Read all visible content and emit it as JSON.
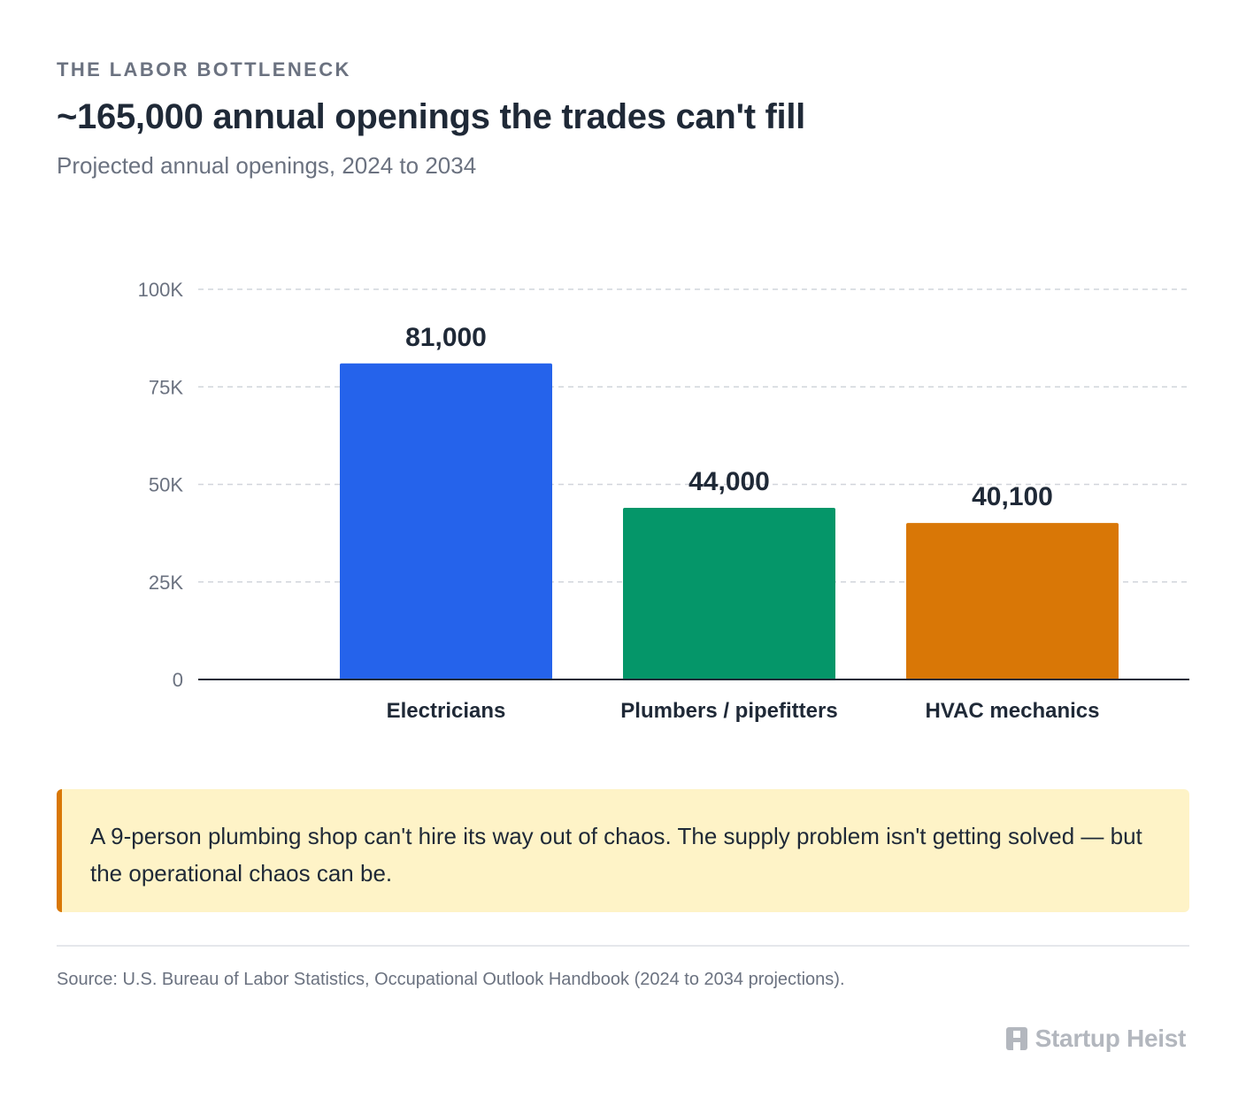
{
  "header": {
    "eyebrow": "THE LABOR BOTTLENECK",
    "title": "~165,000 annual openings the trades can't fill",
    "subtitle": "Projected annual openings, 2024 to 2034"
  },
  "chart_data": {
    "type": "bar",
    "title": "~165,000 annual openings the trades can't fill",
    "subtitle": "Projected annual openings, 2024 to 2034",
    "xlabel": "",
    "ylabel": "",
    "categories": [
      "Electricians",
      "Plumbers / pipefitters",
      "HVAC mechanics"
    ],
    "values": [
      81000,
      44000,
      40100
    ],
    "value_labels": [
      "81,000",
      "44,000",
      "40,100"
    ],
    "colors": [
      "#2563eb",
      "#059669",
      "#d97706"
    ],
    "ylim": [
      0,
      100000
    ],
    "yticks": [
      0,
      25000,
      50000,
      75000,
      100000
    ],
    "ytick_labels": [
      "0",
      "25K",
      "50K",
      "75K",
      "100K"
    ],
    "grid": true,
    "legend": "none"
  },
  "callout": {
    "text": "A 9-person plumbing shop can't hire its way out of chaos. The supply problem isn't getting solved — but the operational chaos can be.",
    "accent_color": "#d97706",
    "background_color": "#fef3c7"
  },
  "footer": {
    "source": "Source: U.S. Bureau of Labor Statistics, Occupational Outlook Handbook (2024 to 2034 projections).",
    "brand_icon": "building-icon",
    "brand_name": "Startup Heist"
  }
}
